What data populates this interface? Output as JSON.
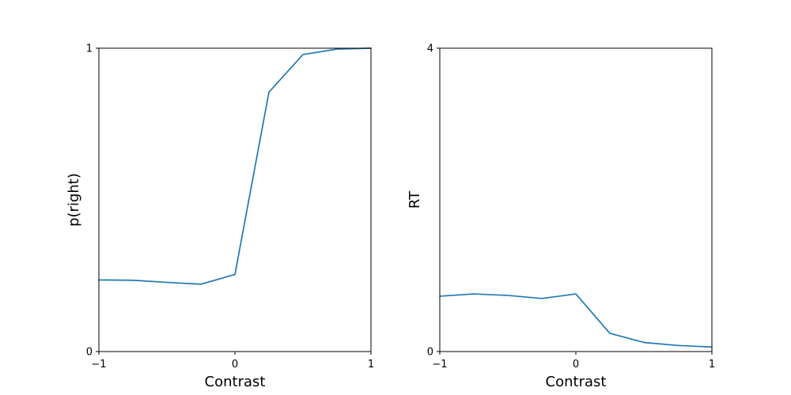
{
  "chart_data": [
    {
      "type": "line",
      "xlabel": "Contrast",
      "ylabel": "p(right)",
      "xlim": [
        -1,
        1
      ],
      "ylim": [
        0,
        1
      ],
      "xticks": [
        -1,
        0,
        1
      ],
      "xtick_labels": [
        "−1",
        "0",
        "1"
      ],
      "yticks": [
        0,
        1
      ],
      "ytick_labels": [
        "0",
        "1"
      ],
      "grid": false,
      "color": "#1f77b4",
      "x": [
        -1,
        -0.75,
        -0.5,
        -0.25,
        0,
        0.25,
        0.5,
        0.75,
        1
      ],
      "series": [
        {
          "values": [
            0.236,
            0.235,
            0.228,
            0.222,
            0.254,
            0.855,
            0.979,
            0.997,
            1.0
          ]
        }
      ]
    },
    {
      "type": "line",
      "xlabel": "Contrast",
      "ylabel": "RT",
      "xlim": [
        -1,
        1
      ],
      "ylim": [
        0,
        4
      ],
      "xticks": [
        -1,
        0,
        1
      ],
      "xtick_labels": [
        "−1",
        "0",
        "1"
      ],
      "yticks": [
        0,
        4
      ],
      "ytick_labels": [
        "0",
        "4"
      ],
      "grid": false,
      "color": "#1f77b4",
      "x": [
        -1,
        -0.75,
        -0.5,
        -0.25,
        0,
        0.25,
        0.5,
        0.75,
        1
      ],
      "series": [
        {
          "values": [
            0.73,
            0.76,
            0.74,
            0.7,
            0.76,
            0.24,
            0.12,
            0.08,
            0.06
          ]
        }
      ]
    }
  ]
}
